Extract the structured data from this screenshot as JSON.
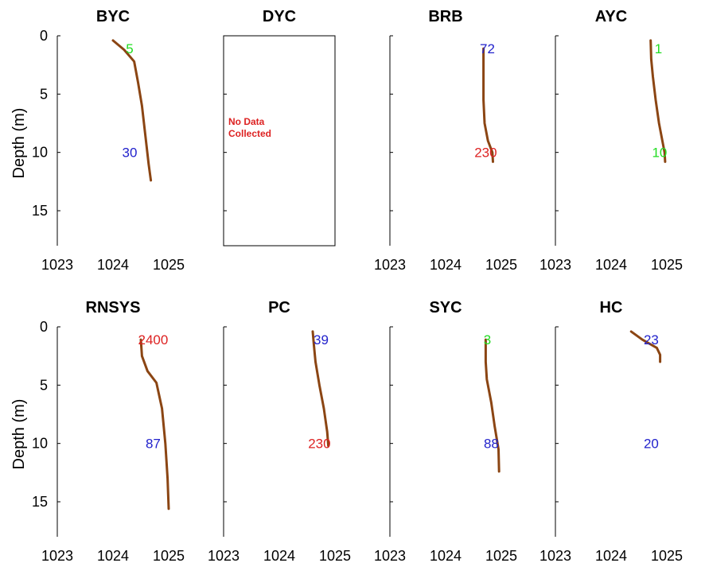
{
  "chart_data": [
    {
      "type": "line",
      "title": "BYC",
      "ylabel": "Depth (m)",
      "xlim": [
        1023,
        1025
      ],
      "ylim": [
        0,
        18
      ],
      "y_reversed": true,
      "xticks": [
        "1023",
        "1024",
        "1025"
      ],
      "yticks": [
        "0",
        "5",
        "10",
        "15"
      ],
      "line_color": "#8B4513",
      "profile": [
        [
          1024.0,
          0.4
        ],
        [
          1024.2,
          1.2
        ],
        [
          1024.38,
          2.2
        ],
        [
          1024.45,
          4.0
        ],
        [
          1024.52,
          6.0
        ],
        [
          1024.58,
          8.5
        ],
        [
          1024.64,
          11.0
        ],
        [
          1024.68,
          12.4
        ]
      ],
      "annotations": [
        {
          "text": "5",
          "x": 1024.3,
          "depth": 1.1,
          "color": "#22dd22"
        },
        {
          "text": "30",
          "x": 1024.3,
          "depth": 10.0,
          "color": "#2222cc"
        }
      ]
    },
    {
      "type": "line",
      "title": "DYC",
      "xlim": [
        1023,
        1025
      ],
      "ylim": [
        0,
        18
      ],
      "y_reversed": true,
      "xticks": [],
      "yticks": [],
      "note_lines": [
        "No Data",
        "Collected"
      ],
      "note_color": "#dd2222",
      "profile": [],
      "annotations": []
    },
    {
      "type": "line",
      "title": "BRB",
      "xlim": [
        1023,
        1025
      ],
      "ylim": [
        0,
        18
      ],
      "y_reversed": true,
      "xticks": [
        "1023",
        "1024",
        "1025"
      ],
      "yticks": [],
      "line_color": "#8B4513",
      "profile": [
        [
          1024.68,
          1.1
        ],
        [
          1024.68,
          3.0
        ],
        [
          1024.68,
          5.5
        ],
        [
          1024.7,
          7.5
        ],
        [
          1024.76,
          9.0
        ],
        [
          1024.84,
          10.0
        ],
        [
          1024.85,
          10.8
        ]
      ],
      "annotations": [
        {
          "text": "72",
          "x": 1024.75,
          "depth": 1.1,
          "color": "#2222cc"
        },
        {
          "text": "230",
          "x": 1024.72,
          "depth": 10.0,
          "color": "#dd2222"
        }
      ]
    },
    {
      "type": "line",
      "title": "AYC",
      "xlim": [
        1023,
        1025
      ],
      "ylim": [
        0,
        18
      ],
      "y_reversed": true,
      "xticks": [
        "1023",
        "1024",
        "1025"
      ],
      "yticks": [],
      "line_color": "#8B4513",
      "profile": [
        [
          1024.71,
          0.4
        ],
        [
          1024.72,
          2.0
        ],
        [
          1024.75,
          3.5
        ],
        [
          1024.8,
          5.5
        ],
        [
          1024.86,
          7.5
        ],
        [
          1024.92,
          9.0
        ],
        [
          1024.96,
          10.0
        ],
        [
          1024.97,
          10.8
        ]
      ],
      "annotations": [
        {
          "text": "1",
          "x": 1024.85,
          "depth": 1.1,
          "color": "#22dd22"
        },
        {
          "text": "10",
          "x": 1024.87,
          "depth": 10.0,
          "color": "#22dd22"
        }
      ]
    },
    {
      "type": "line",
      "title": "RNSYS",
      "ylabel": "Depth (m)",
      "xlim": [
        1023,
        1025
      ],
      "ylim": [
        0,
        18
      ],
      "y_reversed": true,
      "xticks": [
        "1023",
        "1024",
        "1025"
      ],
      "yticks": [
        "0",
        "5",
        "10",
        "15"
      ],
      "line_color": "#8B4513",
      "profile": [
        [
          1024.5,
          1.1
        ],
        [
          1024.52,
          2.5
        ],
        [
          1024.62,
          3.8
        ],
        [
          1024.78,
          4.8
        ],
        [
          1024.88,
          7.0
        ],
        [
          1024.94,
          10.0
        ],
        [
          1024.98,
          13.0
        ],
        [
          1025.0,
          15.6
        ]
      ],
      "annotations": [
        {
          "text": "2400",
          "x": 1024.72,
          "depth": 1.1,
          "color": "#dd2222"
        },
        {
          "text": "87",
          "x": 1024.72,
          "depth": 10.0,
          "color": "#2222cc"
        }
      ]
    },
    {
      "type": "line",
      "title": "PC",
      "xlim": [
        1023,
        1025
      ],
      "ylim": [
        0,
        18
      ],
      "y_reversed": true,
      "xticks": [
        "1023",
        "1024",
        "1025"
      ],
      "yticks": [],
      "line_color": "#8B4513",
      "profile": [
        [
          1024.6,
          0.4
        ],
        [
          1024.62,
          1.5
        ],
        [
          1024.65,
          3.0
        ],
        [
          1024.72,
          5.0
        ],
        [
          1024.8,
          7.0
        ],
        [
          1024.86,
          9.0
        ],
        [
          1024.88,
          10.2
        ]
      ],
      "annotations": [
        {
          "text": "39",
          "x": 1024.75,
          "depth": 1.1,
          "color": "#2222cc"
        },
        {
          "text": "230",
          "x": 1024.72,
          "depth": 10.0,
          "color": "#dd2222"
        }
      ]
    },
    {
      "type": "line",
      "title": "SYC",
      "xlim": [
        1023,
        1025
      ],
      "ylim": [
        0,
        18
      ],
      "y_reversed": true,
      "xticks": [
        "1023",
        "1024",
        "1025"
      ],
      "yticks": [],
      "line_color": "#8B4513",
      "profile": [
        [
          1024.72,
          1.1
        ],
        [
          1024.72,
          3.0
        ],
        [
          1024.74,
          4.5
        ],
        [
          1024.82,
          6.5
        ],
        [
          1024.88,
          8.5
        ],
        [
          1024.95,
          10.5
        ],
        [
          1024.96,
          12.4
        ]
      ],
      "annotations": [
        {
          "text": "3",
          "x": 1024.75,
          "depth": 1.1,
          "color": "#22dd22"
        },
        {
          "text": "88",
          "x": 1024.82,
          "depth": 10.0,
          "color": "#2222cc"
        }
      ]
    },
    {
      "type": "line",
      "title": "HC",
      "xlim": [
        1023,
        1025
      ],
      "ylim": [
        0,
        18
      ],
      "y_reversed": true,
      "xticks": [
        "1023",
        "1024",
        "1025"
      ],
      "yticks": [],
      "line_color": "#8B4513",
      "profile": [
        [
          1024.36,
          0.4
        ],
        [
          1024.56,
          1.1
        ],
        [
          1024.82,
          1.8
        ],
        [
          1024.88,
          2.4
        ],
        [
          1024.88,
          3.0
        ]
      ],
      "annotations": [
        {
          "text": "23",
          "x": 1024.72,
          "depth": 1.1,
          "color": "#2222cc"
        },
        {
          "text": "20",
          "x": 1024.72,
          "depth": 10.0,
          "color": "#2222cc"
        }
      ]
    }
  ]
}
